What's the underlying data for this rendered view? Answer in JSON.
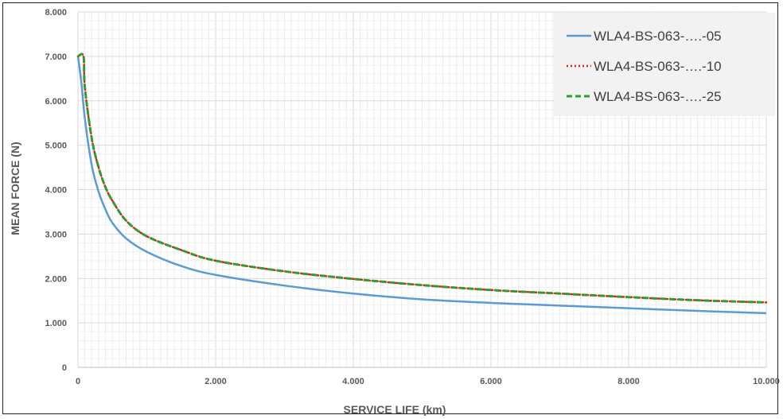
{
  "chart_data": {
    "type": "line",
    "title": "",
    "xlabel": "SERVICE LIFE (km)",
    "ylabel": "MEAN FORCE (N)",
    "xlim": [
      0,
      10000
    ],
    "ylim": [
      0,
      8000
    ],
    "x_ticks": [
      {
        "value": 0,
        "label": "0"
      },
      {
        "value": 2000,
        "label": "2.000"
      },
      {
        "value": 4000,
        "label": "4.000"
      },
      {
        "value": 6000,
        "label": "6.000"
      },
      {
        "value": 8000,
        "label": "8.000"
      },
      {
        "value": 10000,
        "label": "10.000"
      }
    ],
    "y_ticks": [
      {
        "value": 0,
        "label": "0"
      },
      {
        "value": 1000,
        "label": "1.000"
      },
      {
        "value": 2000,
        "label": "2.000"
      },
      {
        "value": 3000,
        "label": "3.000"
      },
      {
        "value": 4000,
        "label": "4.000"
      },
      {
        "value": 5000,
        "label": "5.000"
      },
      {
        "value": 6000,
        "label": "6.000"
      },
      {
        "value": 7000,
        "label": "7.000"
      },
      {
        "value": 8000,
        "label": "8.000"
      }
    ],
    "grid": true,
    "legend_position": "top-right",
    "series": [
      {
        "name": "WLA4-BS-063-….-05",
        "color": "#5b9bd5",
        "style": "solid",
        "x": [
          0,
          50,
          100,
          200,
          300,
          400,
          500,
          700,
          1000,
          1500,
          2000,
          3000,
          4000,
          5000,
          6000,
          7000,
          8000,
          9000,
          10000
        ],
        "y": [
          7000,
          6400,
          5600,
          4550,
          3950,
          3550,
          3250,
          2900,
          2600,
          2280,
          2080,
          1840,
          1660,
          1530,
          1450,
          1390,
          1330,
          1270,
          1220
        ]
      },
      {
        "name": "WLA4-BS-063-….-10",
        "color": "#e02020",
        "style": "dotted",
        "x": [
          0,
          80,
          100,
          200,
          300,
          400,
          500,
          700,
          1000,
          1500,
          2000,
          3000,
          4000,
          5000,
          6000,
          7000,
          8000,
          9000,
          10000
        ],
        "y": [
          7000,
          7000,
          6300,
          5150,
          4500,
          4050,
          3750,
          3300,
          2950,
          2640,
          2400,
          2160,
          1990,
          1850,
          1740,
          1660,
          1580,
          1510,
          1460
        ]
      },
      {
        "name": "WLA4-BS-063-….-25",
        "color": "#2ca02c",
        "style": "dashed",
        "x": [
          0,
          80,
          100,
          200,
          300,
          400,
          500,
          700,
          1000,
          1500,
          2000,
          3000,
          4000,
          5000,
          6000,
          7000,
          8000,
          9000,
          10000
        ],
        "y": [
          7000,
          7000,
          6300,
          5150,
          4500,
          4050,
          3750,
          3300,
          2950,
          2640,
          2400,
          2160,
          1990,
          1850,
          1740,
          1660,
          1580,
          1510,
          1460
        ]
      }
    ]
  }
}
